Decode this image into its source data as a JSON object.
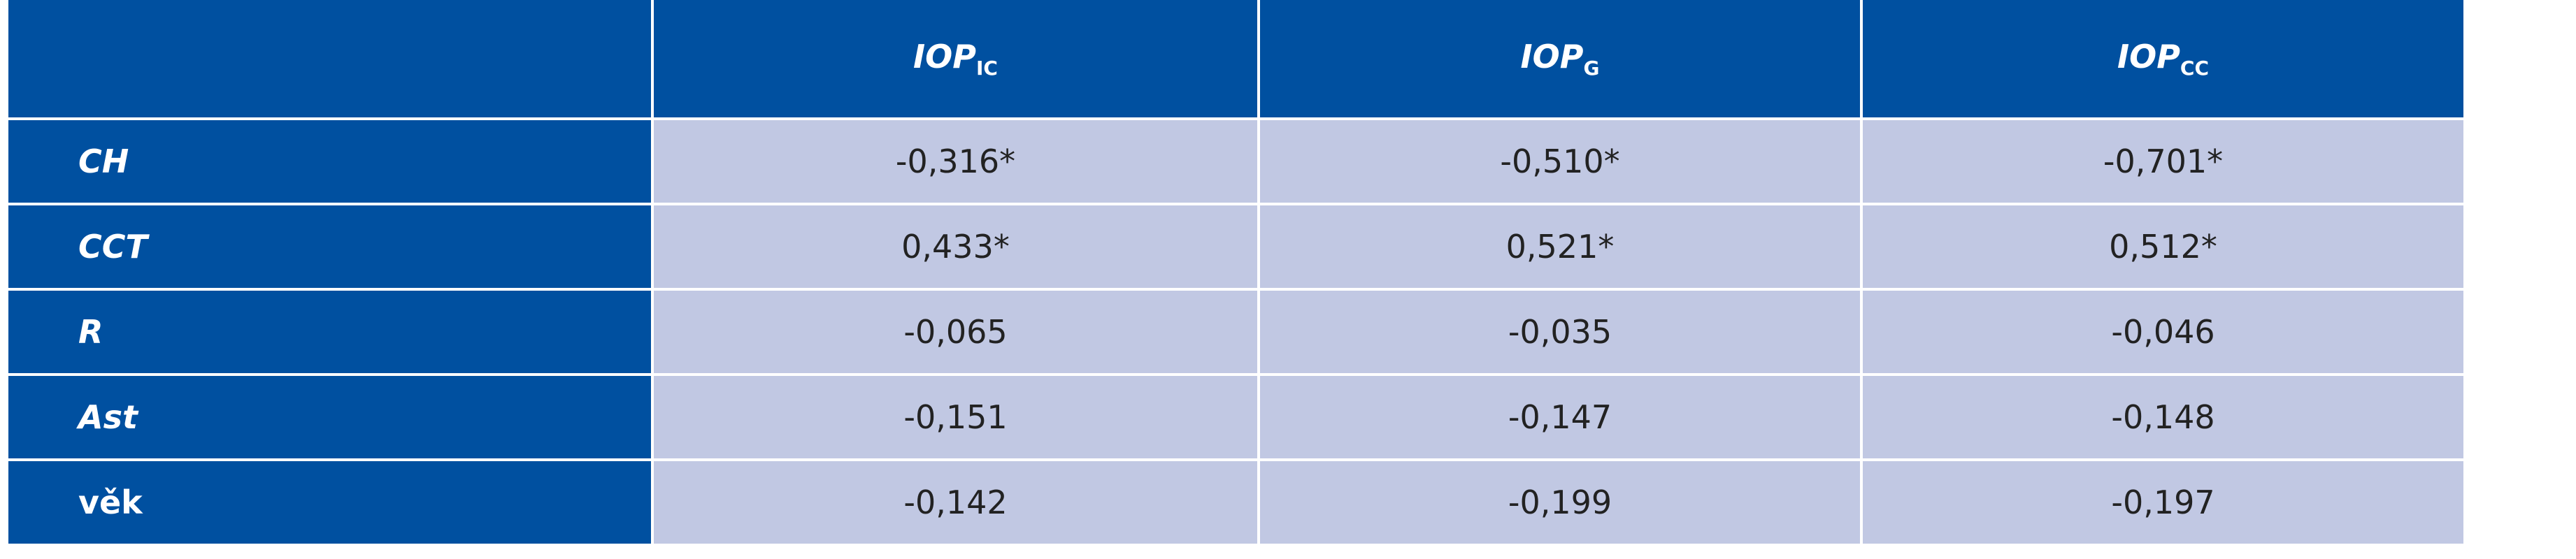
{
  "table": {
    "header": [
      {
        "main": "IOP",
        "sub": "IC"
      },
      {
        "main": "IOP",
        "sub": "G"
      },
      {
        "main": "IOP",
        "sub": "CC"
      }
    ],
    "rows": [
      {
        "label": "CH",
        "cells": [
          "-0,316*",
          "-0,510*",
          "-0,701*"
        ]
      },
      {
        "label": "CCT",
        "cells": [
          "0,433*",
          "0,521*",
          "0,512*"
        ]
      },
      {
        "label": "R",
        "cells": [
          "-0,065",
          "-0,035",
          "-0,046"
        ]
      },
      {
        "label": "Ast",
        "cells": [
          "-0,151",
          "-0,147",
          "-0,148"
        ]
      },
      {
        "label": "věk",
        "cells": [
          "-0,142",
          "-0,199",
          "-0,197"
        ]
      }
    ]
  }
}
